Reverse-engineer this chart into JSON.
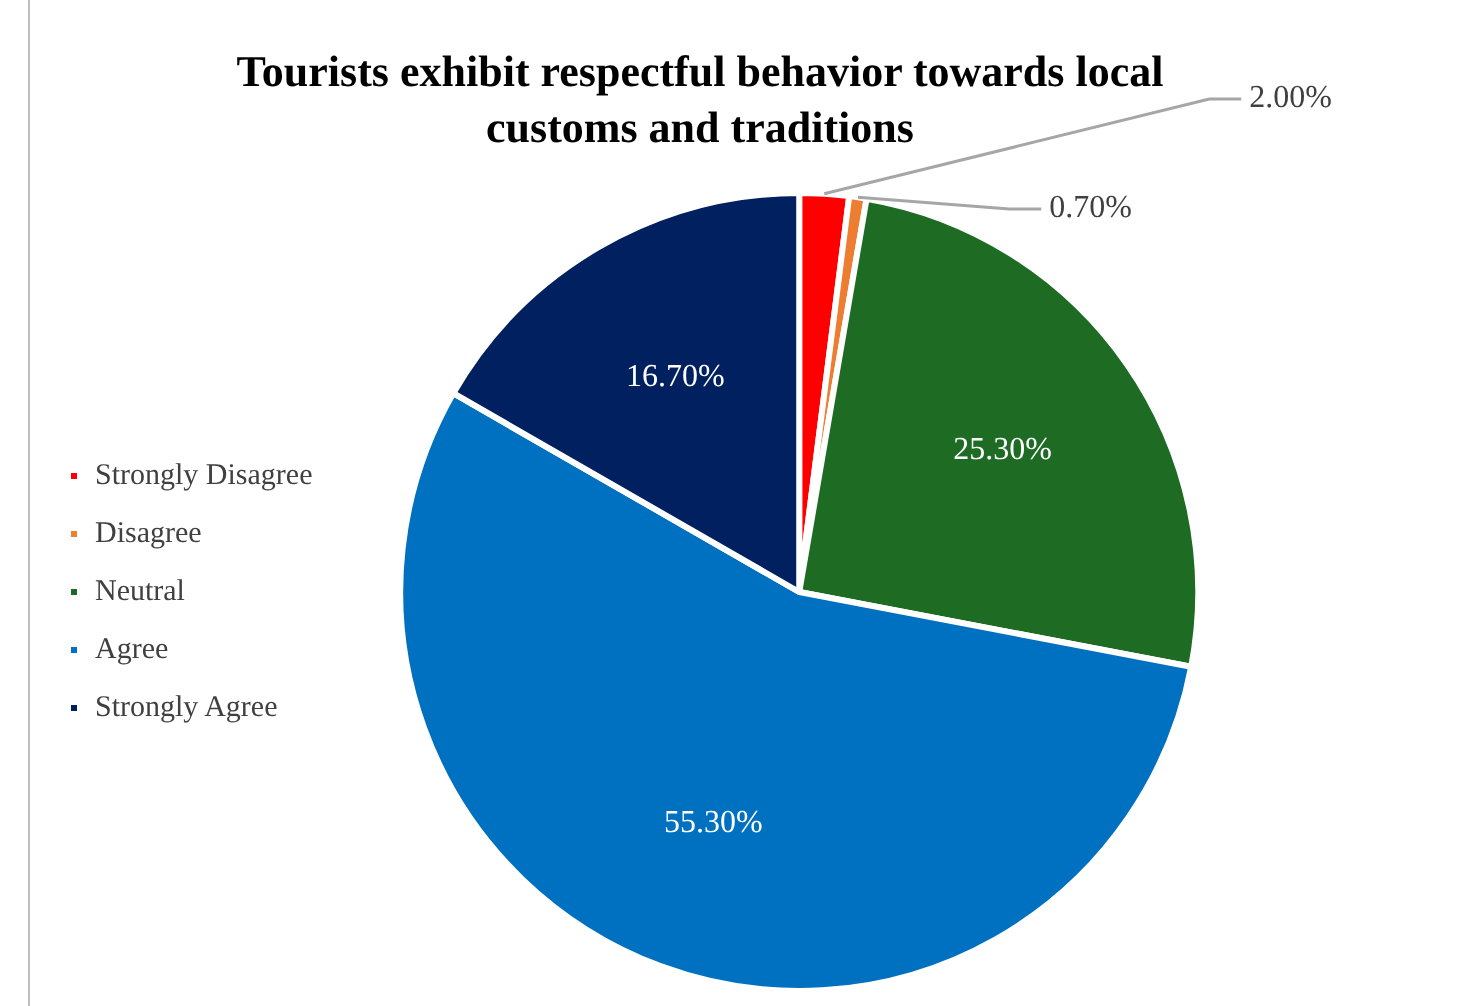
{
  "chart_data": {
    "type": "pie",
    "title": "Tourists exhibit respectful behavior towards  local customs and traditions",
    "categories": [
      "Strongly Disagree",
      "Disagree",
      "Neutral",
      "Agree",
      "Strongly Agree"
    ],
    "values": [
      2.0,
      0.7,
      25.3,
      55.3,
      16.7
    ],
    "colors": [
      "#ff0000",
      "#ed7d31",
      "#1e6b24",
      "#0070c0",
      "#002060"
    ],
    "value_labels": [
      "2.00%",
      "0.70%",
      "25.30%",
      "55.30%",
      "16.70%"
    ],
    "legend": "left"
  }
}
